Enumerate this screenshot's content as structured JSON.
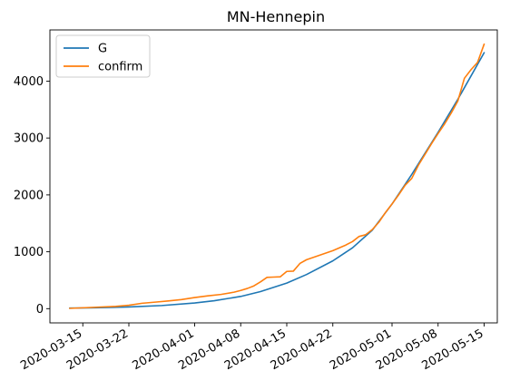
{
  "chart_data": {
    "type": "line",
    "title": "MN-Hennepin",
    "xlabel": "",
    "ylabel": "",
    "x_ticks": [
      "2020-03-15",
      "2020-03-22",
      "2020-04-01",
      "2020-04-08",
      "2020-04-15",
      "2020-04-22",
      "2020-05-01",
      "2020-05-08",
      "2020-05-15"
    ],
    "y_ticks": [
      0,
      1000,
      2000,
      3000,
      4000
    ],
    "xlim": [
      "2020-03-10",
      "2020-05-17"
    ],
    "ylim": [
      -250,
      4900
    ],
    "legend_position": "top-left",
    "grid": false,
    "series": [
      {
        "name": "G",
        "color": "#1f77b4",
        "points": [
          [
            "2020-03-13",
            10
          ],
          [
            "2020-03-17",
            15
          ],
          [
            "2020-03-22",
            30
          ],
          [
            "2020-03-27",
            55
          ],
          [
            "2020-04-01",
            100
          ],
          [
            "2020-04-04",
            140
          ],
          [
            "2020-04-08",
            215
          ],
          [
            "2020-04-11",
            300
          ],
          [
            "2020-04-15",
            450
          ],
          [
            "2020-04-18",
            600
          ],
          [
            "2020-04-22",
            840
          ],
          [
            "2020-04-25",
            1070
          ],
          [
            "2020-04-28",
            1380
          ],
          [
            "2020-05-01",
            1840
          ],
          [
            "2020-05-04",
            2360
          ],
          [
            "2020-05-08",
            3100
          ],
          [
            "2020-05-11",
            3680
          ],
          [
            "2020-05-15",
            4500
          ]
        ]
      },
      {
        "name": "confirm",
        "color": "#ff7f0e",
        "points": [
          [
            "2020-03-13",
            5
          ],
          [
            "2020-03-15",
            15
          ],
          [
            "2020-03-17",
            25
          ],
          [
            "2020-03-20",
            40
          ],
          [
            "2020-03-22",
            60
          ],
          [
            "2020-03-24",
            95
          ],
          [
            "2020-03-26",
            115
          ],
          [
            "2020-03-28",
            135
          ],
          [
            "2020-03-30",
            160
          ],
          [
            "2020-04-01",
            195
          ],
          [
            "2020-04-03",
            225
          ],
          [
            "2020-04-05",
            250
          ],
          [
            "2020-04-07",
            290
          ],
          [
            "2020-04-08",
            320
          ],
          [
            "2020-04-09",
            355
          ],
          [
            "2020-04-10",
            400
          ],
          [
            "2020-04-11",
            470
          ],
          [
            "2020-04-12",
            550
          ],
          [
            "2020-04-13",
            555
          ],
          [
            "2020-04-14",
            560
          ],
          [
            "2020-04-15",
            655
          ],
          [
            "2020-04-16",
            660
          ],
          [
            "2020-04-17",
            795
          ],
          [
            "2020-04-18",
            860
          ],
          [
            "2020-04-20",
            940
          ],
          [
            "2020-04-22",
            1020
          ],
          [
            "2020-04-24",
            1120
          ],
          [
            "2020-04-25",
            1180
          ],
          [
            "2020-04-26",
            1270
          ],
          [
            "2020-04-27",
            1300
          ],
          [
            "2020-04-28",
            1390
          ],
          [
            "2020-04-29",
            1520
          ],
          [
            "2020-04-30",
            1690
          ],
          [
            "2020-05-01",
            1840
          ],
          [
            "2020-05-02",
            2000
          ],
          [
            "2020-05-03",
            2170
          ],
          [
            "2020-05-04",
            2290
          ],
          [
            "2020-05-05",
            2520
          ],
          [
            "2020-05-06",
            2710
          ],
          [
            "2020-05-07",
            2900
          ],
          [
            "2020-05-08",
            3080
          ],
          [
            "2020-05-09",
            3250
          ],
          [
            "2020-05-10",
            3440
          ],
          [
            "2020-05-11",
            3650
          ],
          [
            "2020-05-12",
            4050
          ],
          [
            "2020-05-13",
            4200
          ],
          [
            "2020-05-14",
            4330
          ],
          [
            "2020-05-15",
            4650
          ]
        ]
      }
    ]
  }
}
